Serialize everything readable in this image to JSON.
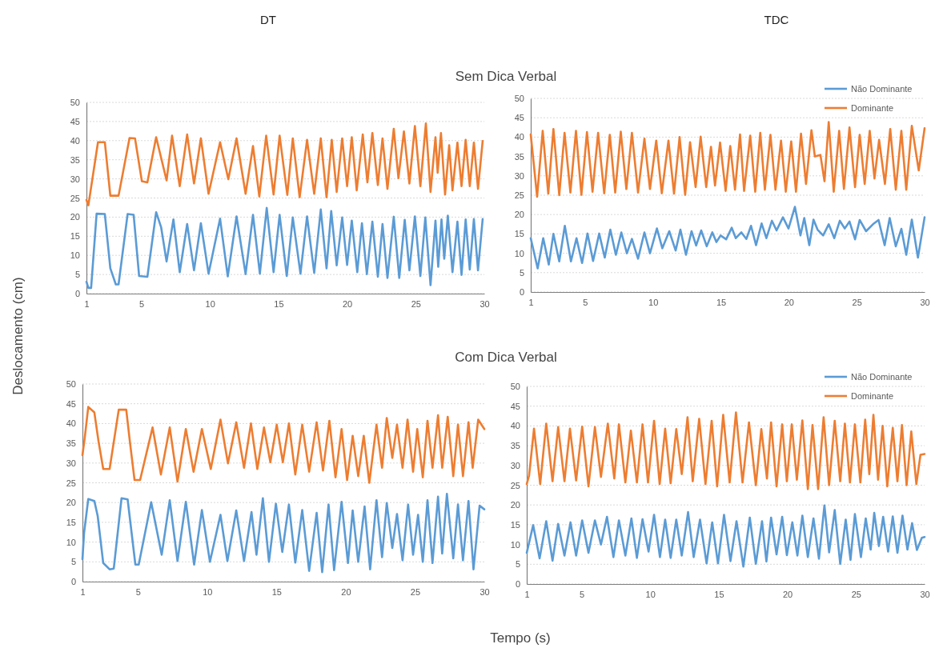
{
  "chart_data": [
    {
      "type": "line",
      "title": "DT",
      "subtitle": "Sem Dica Verbal",
      "ylabel": "Deslocamento (cm)",
      "xlim": [
        1,
        30
      ],
      "xticks": [
        1,
        5,
        10,
        15,
        20,
        25,
        30
      ],
      "ylim": [
        0,
        50
      ],
      "yticks": [
        0,
        5,
        10,
        15,
        20,
        25,
        30,
        35,
        40,
        45,
        50
      ],
      "grid": "y",
      "legend": false,
      "marker": "none",
      "line_style": "solid",
      "series": [
        {
          "color": "#ed7d31",
          "x": [
            1.0,
            1.14,
            1.84,
            2.34,
            2.74,
            3.34,
            4.14,
            4.54,
            5.04,
            5.44,
            6.08,
            6.84,
            7.24,
            7.8,
            8.34,
            8.84,
            9.34,
            9.9,
            10.74,
            11.34,
            11.94,
            12.6,
            13.14,
            13.6,
            14.1,
            14.64,
            15.08,
            15.64,
            16.04,
            16.54,
            17.08,
            17.6,
            18.08,
            18.5,
            18.88,
            19.24,
            19.64,
            20.0,
            20.34,
            20.7,
            21.14,
            21.48,
            21.84,
            22.24,
            22.58,
            22.94,
            23.4,
            23.74,
            24.14,
            24.54,
            24.94,
            25.34,
            25.74,
            26.08,
            26.44,
            26.6,
            26.84,
            27.14,
            27.44,
            27.68,
            28.04,
            28.34,
            28.64,
            28.94,
            29.24,
            29.54,
            29.88
          ],
          "values": [
            24.5,
            23.1,
            39.6,
            39.6,
            25.6,
            25.6,
            40.7,
            40.6,
            29.4,
            29.1,
            40.9,
            29.6,
            41.3,
            28.1,
            41.6,
            28.8,
            40.6,
            26.1,
            39.6,
            29.9,
            40.6,
            26.1,
            38.6,
            25.4,
            41.3,
            25.9,
            41.3,
            25.8,
            40.6,
            25.2,
            40.2,
            26.1,
            40.6,
            25.2,
            40.2,
            26.6,
            40.6,
            28.1,
            40.9,
            27.0,
            41.6,
            29.1,
            42.0,
            28.4,
            40.6,
            27.4,
            43.1,
            30.2,
            42.4,
            28.8,
            43.8,
            28.1,
            44.5,
            26.6,
            40.9,
            31.6,
            42.0,
            25.9,
            38.8,
            27.0,
            39.5,
            28.1,
            40.2,
            28.1,
            39.5,
            27.4,
            39.9
          ]
        },
        {
          "color": "#5b9bd5",
          "x": [
            1.0,
            1.14,
            1.34,
            1.74,
            2.34,
            2.74,
            3.14,
            3.34,
            4.0,
            4.44,
            4.84,
            5.44,
            6.08,
            6.44,
            6.84,
            7.34,
            7.8,
            8.34,
            8.84,
            9.34,
            9.9,
            10.74,
            11.3,
            11.94,
            12.6,
            13.14,
            13.64,
            14.14,
            14.64,
            15.08,
            15.6,
            16.04,
            16.6,
            17.08,
            17.6,
            18.08,
            18.5,
            18.84,
            19.24,
            19.64,
            20.0,
            20.34,
            20.74,
            21.08,
            21.44,
            21.84,
            22.24,
            22.58,
            22.94,
            23.4,
            23.8,
            24.2,
            24.54,
            24.94,
            25.34,
            25.7,
            26.08,
            26.44,
            26.64,
            26.88,
            27.08,
            27.34,
            27.68,
            28.04,
            28.34,
            28.64,
            28.94,
            29.24,
            29.54,
            29.88
          ],
          "values": [
            3.1,
            1.5,
            1.5,
            20.9,
            20.8,
            6.6,
            2.4,
            2.4,
            20.8,
            20.6,
            4.6,
            4.4,
            21.3,
            17.4,
            8.4,
            19.4,
            5.6,
            18.2,
            6.1,
            18.4,
            5.2,
            19.6,
            4.5,
            20.2,
            5.1,
            20.6,
            5.2,
            22.4,
            5.6,
            20.6,
            4.6,
            19.9,
            5.2,
            20.2,
            5.4,
            22.0,
            6.6,
            21.6,
            7.4,
            19.9,
            7.5,
            19.1,
            5.6,
            18.4,
            5.1,
            18.8,
            4.4,
            18.2,
            4.1,
            20.1,
            4.1,
            19.3,
            6.1,
            20.2,
            4.6,
            19.9,
            2.2,
            19.1,
            7.0,
            19.4,
            9.1,
            20.4,
            5.6,
            18.8,
            4.9,
            19.4,
            6.3,
            19.5,
            6.1,
            19.5
          ]
        }
      ]
    },
    {
      "type": "line",
      "title": "TDC",
      "xlim": [
        1,
        30
      ],
      "xticks": [
        1,
        5,
        10,
        15,
        20,
        25,
        30
      ],
      "ylim": [
        0,
        50
      ],
      "yticks": [
        0,
        5,
        10,
        15,
        20,
        25,
        30,
        35,
        40,
        45,
        50
      ],
      "grid": "y",
      "legend": "top right",
      "marker": "none",
      "line_style": "solid",
      "series": [
        {
          "name": "Não Dominante",
          "color": "#5b9bd5",
          "x": [
            1,
            1.51,
            1.92,
            2.33,
            2.67,
            3.1,
            3.51,
            3.96,
            4.37,
            4.78,
            5.18,
            5.59,
            6.04,
            6.45,
            6.86,
            7.27,
            7.67,
            8.08,
            8.45,
            8.9,
            9.37,
            9.78,
            10.29,
            10.69,
            11.2,
            11.67,
            12.02,
            12.43,
            12.84,
            13.18,
            13.55,
            13.96,
            14.37,
            14.67,
            14.98,
            15.39,
            15.8,
            16.1,
            16.51,
            16.88,
            17.22,
            17.59,
            18.0,
            18.35,
            18.76,
            19.1,
            19.57,
            19.98,
            20.45,
            20.86,
            21.14,
            21.51,
            21.82,
            22.12,
            22.53,
            22.94,
            23.35,
            23.76,
            24.12,
            24.47,
            24.88,
            25.22,
            25.69,
            26.2,
            26.61,
            27.06,
            27.43,
            27.88,
            28.29,
            28.65,
            29.06,
            29.51,
            30
          ],
          "values": [
            13.9,
            6.1,
            13.9,
            7.1,
            15,
            7.9,
            17.1,
            7.9,
            13.9,
            7.5,
            15.1,
            8,
            15.1,
            8.9,
            16.1,
            9.6,
            15.4,
            10,
            13.7,
            8.6,
            15.4,
            10,
            16.4,
            11.3,
            15.7,
            10.7,
            16.1,
            9.6,
            15.7,
            12,
            15.9,
            11.8,
            15.4,
            12.9,
            14.6,
            13.6,
            16.6,
            13.9,
            15.4,
            13.7,
            17.1,
            12.1,
            17.7,
            13.9,
            18.4,
            15.9,
            19.3,
            16.4,
            22,
            14.6,
            19.1,
            12.1,
            18.7,
            16.1,
            14.6,
            17.5,
            13.9,
            18.4,
            16.4,
            18.2,
            13.6,
            18.6,
            15.7,
            17.5,
            18.6,
            12.1,
            19.1,
            11.8,
            16.3,
            9.6,
            18.7,
            8.9,
            19.3
          ]
        },
        {
          "name": "Dominante",
          "color": "#ed7d31",
          "x": [
            1,
            1.47,
            1.88,
            2.29,
            2.67,
            3.1,
            3.49,
            3.92,
            4.33,
            4.73,
            5.14,
            5.55,
            5.96,
            6.41,
            6.82,
            7.22,
            7.63,
            8.04,
            8.45,
            8.9,
            9.37,
            9.78,
            10.24,
            10.65,
            11.14,
            11.55,
            11.96,
            12.37,
            12.73,
            13.14,
            13.51,
            13.92,
            14.27,
            14.57,
            14.94,
            15.35,
            15.69,
            16.04,
            16.41,
            16.71,
            17.16,
            17.53,
            17.9,
            18.24,
            18.65,
            19.02,
            19.43,
            19.78,
            20.18,
            20.53,
            20.9,
            21.27,
            21.67,
            21.92,
            22.33,
            22.63,
            22.94,
            23.31,
            23.71,
            24.06,
            24.47,
            24.88,
            25.22,
            25.59,
            25.96,
            26.31,
            26.65,
            27.08,
            27.47,
            27.88,
            28.29,
            28.65,
            29.06,
            29.57,
            30
          ],
          "values": [
            40.7,
            24.6,
            41.6,
            25.4,
            42.1,
            25,
            41.1,
            25.7,
            41.6,
            25.1,
            41.3,
            25.9,
            41.1,
            25.5,
            40.6,
            25.7,
            41.4,
            26.6,
            41.1,
            25.7,
            39.6,
            26.6,
            39.1,
            25.5,
            39.1,
            25.4,
            40,
            25.1,
            38.7,
            27.1,
            40.1,
            27.1,
            37.5,
            27.5,
            38.6,
            26.1,
            37.7,
            26.4,
            40.7,
            26.1,
            40.4,
            25.9,
            41.1,
            26.4,
            40.6,
            26.4,
            39.1,
            25.9,
            38.9,
            25.9,
            40.9,
            27.9,
            41.8,
            35,
            35.4,
            28.6,
            43.9,
            25.9,
            41.6,
            26.6,
            42.5,
            27.1,
            40.6,
            27.9,
            41.6,
            29.3,
            39.3,
            27.9,
            42.1,
            26.4,
            41.6,
            26.4,
            42.9,
            31.4,
            42.3
          ]
        }
      ]
    },
    {
      "type": "line",
      "subtitle": "Com Dica Verbal",
      "xlabel": "Tempo (s)",
      "xlim": [
        1,
        30
      ],
      "xticks": [
        1,
        5,
        10,
        15,
        20,
        25,
        30
      ],
      "ylim": [
        0,
        50
      ],
      "yticks": [
        0,
        5,
        10,
        15,
        20,
        25,
        30,
        35,
        40,
        45,
        50
      ],
      "grid": "y",
      "legend": false,
      "marker": "none",
      "line_style": "solid",
      "series": [
        {
          "color": "#ed7d31",
          "x": [
            1,
            1.16,
            1.42,
            1.86,
            2.16,
            2.5,
            2.96,
            3.62,
            4.16,
            4.42,
            4.76,
            5.16,
            6.06,
            6.66,
            7.3,
            7.86,
            8.46,
            9.02,
            9.62,
            10.26,
            10.96,
            11.5,
            12.1,
            12.66,
            13.16,
            13.62,
            14.1,
            14.56,
            15.02,
            15.46,
            15.9,
            16.36,
            16.86,
            17.36,
            17.9,
            18.36,
            18.82,
            19.26,
            19.7,
            20.1,
            20.5,
            20.9,
            21.3,
            21.7,
            22.22,
            22.62,
            22.96,
            23.36,
            23.7,
            24.1,
            24.46,
            24.86,
            25.16,
            25.56,
            25.9,
            26.26,
            26.66,
            26.96,
            27.36,
            27.76,
            28.1,
            28.46,
            28.86,
            29.16,
            29.56,
            30
          ],
          "values": [
            32,
            36.2,
            44.2,
            42.8,
            35.5,
            28.5,
            28.5,
            43.5,
            43.5,
            35.5,
            25.7,
            25.7,
            39,
            27.1,
            39,
            25.3,
            38.6,
            27.8,
            38.6,
            28.5,
            41,
            29.9,
            40.3,
            28.8,
            40,
            28.5,
            39,
            30.2,
            39.7,
            30.2,
            40,
            27.1,
            39.7,
            27.8,
            40.3,
            28.1,
            40.7,
            26.4,
            38.6,
            25.7,
            36.9,
            26.7,
            36.9,
            25,
            39.7,
            28.8,
            41.4,
            31.3,
            39.7,
            28.8,
            41,
            27.8,
            38.6,
            26.4,
            40.7,
            28.8,
            42.1,
            28.8,
            41.7,
            26.7,
            39.7,
            26.7,
            40.3,
            28.8,
            41,
            38.6
          ]
        },
        {
          "color": "#5b9bd5",
          "x": [
            1,
            1.12,
            1.42,
            1.86,
            2.1,
            2.5,
            2.96,
            3.26,
            3.82,
            4.26,
            4.82,
            5.06,
            5.96,
            6.72,
            7.3,
            7.86,
            8.46,
            9.06,
            9.62,
            10.2,
            10.96,
            11.46,
            12.1,
            12.66,
            13.2,
            13.56,
            14.02,
            14.46,
            14.96,
            15.42,
            15.9,
            16.36,
            16.86,
            17.36,
            17.9,
            18.3,
            18.76,
            19.16,
            19.7,
            20.16,
            20.5,
            20.9,
            21.36,
            21.76,
            22.22,
            22.62,
            22.96,
            23.36,
            23.7,
            24.1,
            24.5,
            24.86,
            25.22,
            25.56,
            25.9,
            26.26,
            26.66,
            26.96,
            27.3,
            27.76,
            28.1,
            28.46,
            28.86,
            29.22,
            29.66,
            30
          ],
          "values": [
            5.7,
            12.4,
            20.9,
            20.4,
            16.6,
            4.7,
            3.1,
            3.3,
            21.1,
            20.8,
            4.3,
            4.3,
            20.1,
            6.8,
            20.6,
            5.2,
            20.2,
            4.3,
            18.1,
            5,
            16.9,
            5.2,
            18,
            5.2,
            17.6,
            6.8,
            21.1,
            5,
            19.7,
            7.5,
            19.5,
            4.8,
            18.1,
            2.7,
            17.4,
            2.4,
            19.5,
            2.9,
            20.2,
            4.7,
            18,
            5,
            19,
            3.1,
            20.6,
            6.2,
            19.9,
            8.5,
            17.1,
            5.4,
            19.5,
            6.8,
            16.9,
            5,
            20.6,
            4.7,
            21.5,
            7.1,
            22.2,
            5.9,
            19.5,
            5.4,
            20.4,
            3.1,
            19.2,
            18.3
          ]
        }
      ]
    },
    {
      "type": "line",
      "xlim": [
        1,
        30
      ],
      "xticks": [
        1,
        5,
        10,
        15,
        20,
        25,
        30
      ],
      "ylim": [
        0,
        50
      ],
      "yticks": [
        0,
        5,
        10,
        15,
        20,
        25,
        30,
        35,
        40,
        45,
        50
      ],
      "grid": "y",
      "legend": "top right",
      "marker": "none",
      "line_style": "solid",
      "series": [
        {
          "name": "Não Dominante",
          "color": "#5b9bd5",
          "x": [
            1,
            1.47,
            1.94,
            2.42,
            2.88,
            3.29,
            3.75,
            4.19,
            4.6,
            5.04,
            5.5,
            5.97,
            6.41,
            6.85,
            7.32,
            7.72,
            8.19,
            8.63,
            9.03,
            9.44,
            9.88,
            10.28,
            10.71,
            11.09,
            11.49,
            11.9,
            12.3,
            12.76,
            13.17,
            13.63,
            14.11,
            14.52,
            14.94,
            15.38,
            15.85,
            16.29,
            16.79,
            17.26,
            17.7,
            18.15,
            18.47,
            18.81,
            19.21,
            19.62,
            19.96,
            20.36,
            20.73,
            21.09,
            21.49,
            21.9,
            22.3,
            22.7,
            23.04,
            23.45,
            23.85,
            24.25,
            24.6,
            24.92,
            25.36,
            25.71,
            26.07,
            26.33,
            26.67,
            26.98,
            27.34,
            27.68,
            28.02,
            28.39,
            28.75,
            29.09,
            29.44,
            29.8,
            30
          ],
          "values": [
            7.9,
            14.9,
            6.5,
            15.9,
            5.9,
            15.2,
            7.2,
            15.6,
            7.2,
            16.1,
            7.9,
            16.1,
            10,
            17,
            6.8,
            16.1,
            7.2,
            16.6,
            6.6,
            16.4,
            8.2,
            17.5,
            6.8,
            16.3,
            6.6,
            16.3,
            7.2,
            18.2,
            6.8,
            16.3,
            5.2,
            15.6,
            5.2,
            17.5,
            5.8,
            15.9,
            4.4,
            16.8,
            5.1,
            15.9,
            5.7,
            16.8,
            7.5,
            17,
            7.3,
            15.6,
            7.2,
            17.3,
            6.8,
            16.6,
            6.4,
            19.9,
            8,
            18.7,
            5.1,
            16.3,
            6.1,
            17.7,
            6.8,
            16.6,
            8.7,
            18,
            9.6,
            17,
            8.2,
            17.1,
            7.9,
            17.3,
            8.7,
            15.4,
            8.6,
            11.7,
            11.9
          ]
        },
        {
          "name": "Dominante",
          "color": "#ed7d31",
          "x": [
            1,
            1.17,
            1.53,
            1.98,
            2.42,
            2.88,
            3.29,
            3.75,
            4.15,
            4.6,
            5.04,
            5.5,
            5.97,
            6.41,
            6.91,
            7.38,
            7.72,
            8.19,
            8.59,
            9.03,
            9.44,
            9.84,
            10.28,
            10.69,
            11.09,
            11.49,
            11.9,
            12.3,
            12.72,
            13.1,
            13.57,
            14.03,
            14.48,
            14.88,
            15.32,
            15.79,
            16.25,
            16.73,
            17.2,
            17.7,
            18.1,
            18.51,
            18.81,
            19.21,
            19.62,
            19.96,
            20.32,
            20.69,
            21.09,
            21.49,
            21.83,
            22.24,
            22.64,
            23.04,
            23.45,
            23.85,
            24.19,
            24.56,
            24.92,
            25.32,
            25.67,
            25.97,
            26.27,
            26.61,
            26.94,
            27.28,
            27.68,
            28.02,
            28.35,
            28.69,
            29.03,
            29.4,
            29.7,
            30
          ],
          "values": [
            25.3,
            27.4,
            39.3,
            25.3,
            40.6,
            26,
            39.7,
            26,
            39.3,
            26.2,
            39.8,
            24.7,
            39.7,
            27.1,
            40.6,
            26.7,
            40.4,
            25.7,
            38.8,
            25.7,
            40.4,
            25.7,
            41.3,
            25.3,
            39.3,
            25.5,
            39.2,
            27.8,
            42.2,
            26,
            41.8,
            25.3,
            41.3,
            24.7,
            42.8,
            25.7,
            43.4,
            25.7,
            40.9,
            25,
            39.2,
            26.7,
            40.9,
            24.7,
            40.4,
            26,
            40.4,
            26.4,
            41.4,
            24,
            40.2,
            24,
            42.2,
            25,
            41.3,
            26,
            40.6,
            25.7,
            40.4,
            25.7,
            41.6,
            27.8,
            42.8,
            26.4,
            40,
            24.7,
            39.5,
            26,
            40.2,
            25,
            38.6,
            25.3,
            32.7,
            32.9
          ]
        }
      ]
    }
  ]
}
